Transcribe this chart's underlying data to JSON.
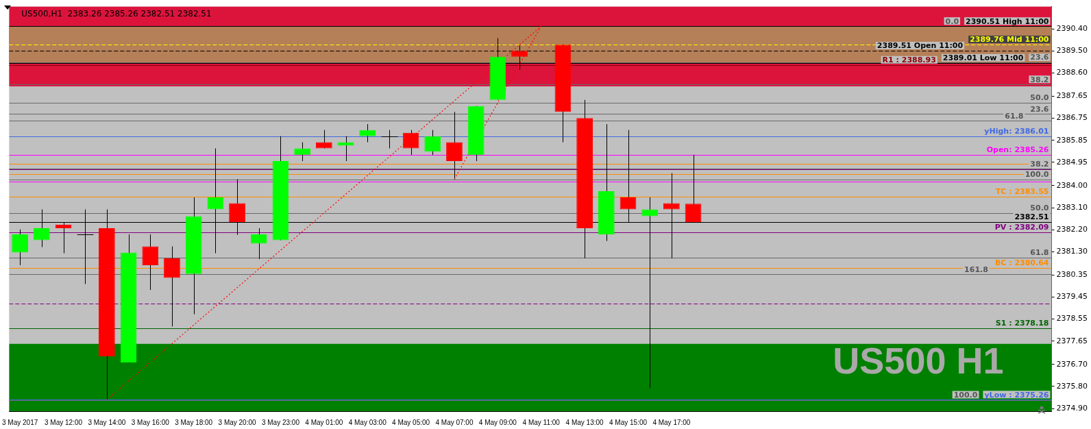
{
  "chart_data": {
    "type": "candlestick",
    "title": "US500,H1  2383.26 2385.26 2382.51 2382.51",
    "categories": [
      "3 May 2017",
      null,
      "3 May 12:00",
      null,
      "3 May 14:00",
      null,
      "3 May 16:00",
      null,
      "3 May 18:00",
      null,
      "3 May 20:00",
      null,
      "3 May 23:00",
      null,
      "4 May 01:00",
      null,
      "4 May 03:00",
      null,
      "4 May 05:00",
      null,
      "4 May 07:00",
      null,
      "4 May 09:00",
      null,
      "4 May 11:00",
      null,
      "4 May 13:00",
      null,
      "4 May 15:00",
      null,
      "4 May 17:00",
      null,
      null,
      null,
      null,
      null,
      null,
      null,
      null,
      null,
      null,
      null,
      null,
      null,
      null,
      null,
      null,
      null
    ],
    "ohlc": [
      [
        2381.27,
        2382.21,
        2380.75,
        2382.01
      ],
      [
        2381.77,
        2383.03,
        2381.49,
        2382.26
      ],
      [
        2382.4,
        2382.48,
        2381.24,
        2382.26
      ],
      [
        2382.01,
        2383.03,
        2379.98,
        2382.01
      ],
      [
        2382.26,
        2383.03,
        2375.26,
        2377.02
      ],
      [
        2376.77,
        2382.01,
        2376.77,
        2381.27
      ],
      [
        2381.52,
        2382.01,
        2379.74,
        2380.75
      ],
      [
        2381.03,
        2381.52,
        2378.25,
        2380.23
      ],
      [
        2380.39,
        2383.52,
        2378.75,
        2382.75
      ],
      [
        2383.03,
        2385.52,
        2381.24,
        2383.52
      ],
      [
        2383.28,
        2384.26,
        2381.99,
        2382.51
      ],
      [
        2381.63,
        2382.26,
        2381.0,
        2382.01
      ],
      [
        2381.77,
        2386.02,
        2381.77,
        2385.0
      ],
      [
        2385.25,
        2385.77,
        2385.0,
        2385.52
      ],
      [
        2385.77,
        2386.27,
        2385.52,
        2385.52
      ],
      [
        2385.63,
        2386.02,
        2385.0,
        2385.77
      ],
      [
        2386.02,
        2386.51,
        2385.77,
        2386.27
      ],
      [
        2386.02,
        2386.27,
        2385.52,
        2386.02
      ],
      [
        2386.16,
        2386.27,
        2385.25,
        2385.52
      ],
      [
        2385.39,
        2386.27,
        2385.25,
        2386.02
      ],
      [
        2385.77,
        2387.01,
        2384.26,
        2385.0
      ],
      [
        2385.25,
        2387.25,
        2385.0,
        2387.25
      ],
      [
        2387.5,
        2390.02,
        2387.5,
        2389.26
      ],
      [
        2389.5,
        2389.72,
        2388.73,
        2389.26
      ],
      null,
      [
        2389.75,
        2389.75,
        2385.77,
        2387.01
      ],
      [
        2386.76,
        2387.5,
        2381.03,
        2382.26
      ],
      [
        2382.01,
        2386.51,
        2381.74,
        2383.77
      ],
      [
        2383.52,
        2386.27,
        2382.51,
        2383.03
      ],
      [
        2382.75,
        2383.52,
        2375.73,
        2383.03
      ],
      [
        2383.28,
        2384.51,
        2381.03,
        2383.03
      ],
      [
        2383.26,
        2385.26,
        2382.51,
        2382.51
      ],
      null,
      null,
      null,
      null,
      null,
      null,
      null,
      null,
      null,
      null,
      null,
      null,
      null,
      null,
      null,
      null
    ],
    "colors": [
      "#00ff00",
      "#00ff00",
      "#ff0000",
      "#000000",
      "#ff0000",
      "#00ff00",
      "#ff0000",
      "#ff0000",
      "#00ff00",
      "#00ff00",
      "#ff0000",
      "#00ff00",
      "#00ff00",
      "#00ff00",
      "#ff0000",
      "#00ff00",
      "#00ff00",
      "#000000",
      "#ff0000",
      "#00ff00",
      "#ff0000",
      "#00ff00",
      "#00ff00",
      "#ff0000",
      null,
      "#ff0000",
      "#ff0000",
      "#00ff00",
      "#ff0000",
      "#00ff00",
      "#ff0000",
      "#ff0000",
      null,
      null,
      null,
      null,
      null,
      null,
      null,
      null,
      null,
      null,
      null,
      null,
      null,
      null,
      null,
      null
    ],
    "series": [
      {
        "type": "line",
        "color": "#ff0000",
        "line_style": "dotted",
        "values": [
          null,
          null,
          null,
          null,
          2375.26,
          null,
          null,
          null,
          null,
          null,
          null,
          null,
          null,
          null,
          null,
          null,
          null,
          null,
          null,
          null,
          null,
          null,
          null,
          null,
          2390.51,
          null,
          null,
          null,
          null,
          null,
          null,
          null,
          null,
          null,
          null,
          null,
          null,
          null,
          null,
          null,
          null,
          null,
          null,
          null,
          null,
          null,
          null,
          null
        ]
      },
      {
        "type": "line",
        "color": "#ff0000",
        "line_style": "dotted",
        "values": [
          null,
          null,
          null,
          null,
          null,
          null,
          null,
          null,
          null,
          null,
          null,
          null,
          null,
          null,
          null,
          null,
          null,
          null,
          null,
          null,
          2384.26,
          null,
          null,
          null,
          2390.51,
          null,
          null,
          null,
          null,
          null,
          null,
          null,
          null,
          null,
          null,
          null,
          null,
          null,
          null,
          null,
          null,
          null,
          null,
          null,
          null,
          null,
          null,
          null
        ]
      }
    ],
    "marker": "none",
    "ylim": [
      2374.79,
      2391.31
    ],
    "yticks": [
      {
        "value": 2390.4,
        "label": "2390.40"
      },
      {
        "value": 2389.5,
        "label": "2389.50"
      },
      {
        "value": 2388.6,
        "label": "2388.60"
      },
      {
        "value": 2387.65,
        "label": "2387.65"
      },
      {
        "value": 2386.75,
        "label": "2386.75"
      },
      {
        "value": 2385.85,
        "label": "2385.85"
      },
      {
        "value": 2384.95,
        "label": "2384.95"
      },
      {
        "value": 2384.0,
        "label": "2384.00"
      },
      {
        "value": 2383.1,
        "label": "2383.10"
      },
      {
        "value": 2382.2,
        "label": "2382.20"
      },
      {
        "value": 2381.3,
        "label": "2381.30"
      },
      {
        "value": 2380.35,
        "label": "2380.35"
      },
      {
        "value": 2379.45,
        "label": "2379.45"
      },
      {
        "value": 2378.55,
        "label": "2378.55"
      },
      {
        "value": 2377.65,
        "label": "2377.65"
      },
      {
        "value": 2376.7,
        "label": "2376.70"
      },
      {
        "value": 2375.8,
        "label": "2375.80"
      },
      {
        "value": 2374.9,
        "label": "2374.90"
      }
    ],
    "bands": [
      {
        "axis": "y",
        "from": 2388.05,
        "to": 2391.31,
        "color": "#dc143c"
      },
      {
        "axis": "y",
        "from": 2374.79,
        "to": 2377.54,
        "color": "#008000"
      },
      {
        "axis": "y",
        "from": 2389.01,
        "to": 2390.51,
        "color": "#b57f57"
      }
    ],
    "ref_lines": [
      {
        "axis": "y",
        "value": 2388.93,
        "label": "R1 : 2388.93",
        "color": "#8b0000"
      },
      {
        "axis": "y",
        "value": 2386.01,
        "label": "yHigh: 2386.01",
        "color": "#4169e1"
      },
      {
        "axis": "y",
        "value": 2385.26,
        "label": "Open: 2385.26",
        "color": "#ff00ff"
      },
      {
        "axis": "y",
        "value": 2383.55,
        "label": "TC : 2383.55",
        "color": "#ff8c00"
      },
      {
        "axis": "y",
        "value": 2382.09,
        "label": "PV : 2382.09",
        "color": "#800080"
      },
      {
        "axis": "y",
        "value": 2380.64,
        "label": "BC : 2380.64",
        "color": "#ff8c00"
      },
      {
        "axis": "y",
        "value": 2378.18,
        "label": "S1 : 2378.18",
        "color": "#006400"
      },
      {
        "axis": "y",
        "value": 2375.26,
        "label": "yLow : 2375.26",
        "color": "#4169e1"
      },
      {
        "axis": "y",
        "value": 2382.51,
        "label": "2382.51",
        "color": "#000000"
      },
      {
        "axis": "y",
        "value": 2379.19,
        "color": "#800080",
        "line_style": "dashed"
      },
      {
        "axis": "y",
        "value": 2384.89,
        "color": "#ff8c00"
      },
      {
        "axis": "y",
        "value": 2384.67,
        "color": "#800080"
      },
      {
        "axis": "y",
        "value": 2384.48,
        "color": "#ff8c00"
      },
      {
        "axis": "y",
        "value": 2384.15,
        "color": "#ff00ff"
      },
      {
        "axis": "y",
        "value": 2390.51,
        "color": "#696969"
      },
      {
        "axis": "y",
        "value": 2389.03,
        "color": "#696969"
      },
      {
        "axis": "y",
        "value": 2388.13,
        "color": "#696969"
      },
      {
        "axis": "y",
        "value": 2387.38,
        "color": "#696969"
      },
      {
        "axis": "y",
        "value": 2386.92,
        "color": "#696969"
      },
      {
        "axis": "y",
        "value": 2386.64,
        "color": "#696969"
      },
      {
        "axis": "y",
        "value": 2384.69,
        "color": "#696969"
      },
      {
        "axis": "y",
        "value": 2384.26,
        "color": "#696969"
      },
      {
        "axis": "y",
        "value": 2382.88,
        "color": "#696969"
      },
      {
        "axis": "y",
        "value": 2381.07,
        "color": "#696969"
      },
      {
        "axis": "y",
        "value": 2380.38,
        "color": "#696969"
      },
      {
        "axis": "y",
        "value": 2375.25,
        "color": "#696969"
      },
      {
        "axis": "y",
        "value": 2390.51,
        "label": "2390.51 High 11:00",
        "color": "#000000"
      },
      {
        "axis": "y",
        "value": 2389.76,
        "label": "2389.76 Mid 11:00",
        "color": "#ffff00",
        "line_style": "dashed"
      },
      {
        "axis": "y",
        "value": 2389.51,
        "label": "2389.51 Open 11:00",
        "color": "#000000",
        "line_style": "dashed"
      },
      {
        "axis": "y",
        "value": 2389.01,
        "label": "2389.01 Low 11:00",
        "color": "#000000"
      }
    ],
    "annotations": [
      "US500 H1",
      {
        "text": "0.0",
        "y": 2390.51
      },
      {
        "text": "23.6",
        "y": 2389.03
      },
      {
        "text": "38.2",
        "y": 2388.13
      },
      {
        "text": "50.0",
        "y": 2387.38
      },
      {
        "text": "23.6",
        "y": 2386.92
      },
      {
        "text": "61.8",
        "y": 2386.64
      },
      {
        "text": "38.2",
        "y": 2384.69
      },
      {
        "text": "100.0",
        "y": 2384.26
      },
      {
        "text": "50.0",
        "y": 2382.88
      },
      {
        "text": "61.8",
        "y": 2381.07
      },
      {
        "text": "161.8",
        "y": 2380.38
      },
      {
        "text": "100.0",
        "y": 2375.25
      }
    ],
    "grid": false,
    "legend": false
  }
}
